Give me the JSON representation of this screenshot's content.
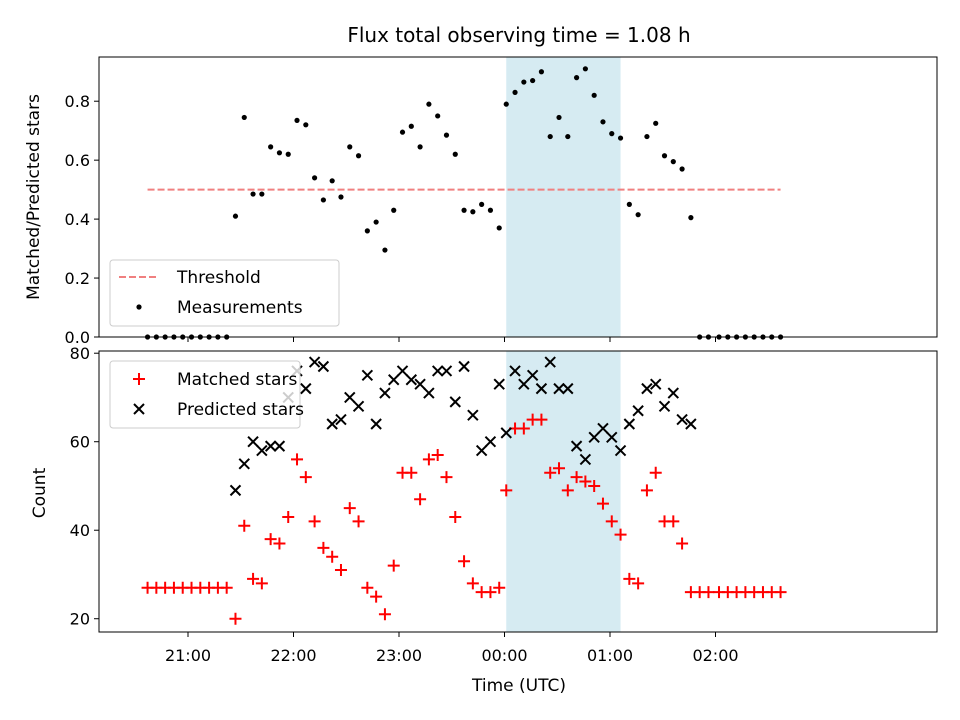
{
  "chart_data": [
    {
      "type": "scatter",
      "title": "Flux total observing time = 1.08 h",
      "xlabel": "",
      "ylabel": "Matched/Predicted stars",
      "ylim": [
        0,
        0.95
      ],
      "yticks": [
        "0.0",
        "0.2",
        "0.4",
        "0.6",
        "0.8"
      ],
      "threshold": {
        "name": "Threshold",
        "value": 0.5,
        "x_start": "20:37",
        "x_end": "02:37",
        "color": "#f08080"
      },
      "highlight": {
        "start": "00:01",
        "end": "01:06",
        "color": "#add8e6"
      },
      "legend": {
        "position": "lower-left"
      },
      "series": [
        {
          "name": "Measurements",
          "color": "#000000",
          "x": [
            "20:37",
            "20:42",
            "20:47",
            "20:52",
            "20:57",
            "21:02",
            "21:07",
            "21:12",
            "21:17",
            "21:22",
            "21:27",
            "21:32",
            "21:37",
            "21:42",
            "21:47",
            "21:52",
            "21:57",
            "22:02",
            "22:07",
            "22:12",
            "22:17",
            "22:22",
            "22:27",
            "22:32",
            "22:37",
            "22:42",
            "22:47",
            "22:52",
            "22:57",
            "23:02",
            "23:07",
            "23:12",
            "23:17",
            "23:22",
            "23:27",
            "23:32",
            "23:37",
            "23:42",
            "23:47",
            "23:52",
            "23:57",
            "00:01",
            "00:06",
            "00:11",
            "00:16",
            "00:21",
            "00:26",
            "00:31",
            "00:36",
            "00:41",
            "00:46",
            "00:51",
            "00:56",
            "01:01",
            "01:06",
            "01:11",
            "01:16",
            "01:21",
            "01:26",
            "01:31",
            "01:36",
            "01:41",
            "01:46",
            "01:51",
            "01:56",
            "02:02",
            "02:07",
            "02:12",
            "02:17",
            "02:22",
            "02:27",
            "02:32",
            "02:37"
          ],
          "y": [
            0,
            0,
            0,
            0,
            0,
            0,
            0,
            0,
            0,
            0,
            0.41,
            0.745,
            0.485,
            0.485,
            0.645,
            0.625,
            0.62,
            0.735,
            0.72,
            0.54,
            0.465,
            0.53,
            0.475,
            0.645,
            0.615,
            0.36,
            0.39,
            0.295,
            0.43,
            0.695,
            0.715,
            0.645,
            0.79,
            0.75,
            0.685,
            0.62,
            0.43,
            0.425,
            0.45,
            0.43,
            0.37,
            0.79,
            0.83,
            0.865,
            0.87,
            0.9,
            0.68,
            0.745,
            0.68,
            0.88,
            0.91,
            0.82,
            0.73,
            0.69,
            0.675,
            0.45,
            0.415,
            0.68,
            0.725,
            0.615,
            0.595,
            0.57,
            0.405,
            0,
            0,
            0,
            0,
            0,
            0,
            0,
            0,
            0,
            0
          ]
        }
      ]
    },
    {
      "type": "scatter",
      "title": "",
      "xlabel": "Time (UTC)",
      "ylabel": "Count",
      "ylim": [
        17,
        80.5
      ],
      "yticks": [
        "20",
        "40",
        "60",
        "80"
      ],
      "xticks": [
        "21:00",
        "22:00",
        "23:00",
        "00:00",
        "01:00",
        "02:00"
      ],
      "highlight": {
        "start": "00:01",
        "end": "01:06",
        "color": "#add8e6"
      },
      "legend": {
        "position": "upper-left"
      },
      "series": [
        {
          "name": "Matched stars",
          "marker": "+",
          "color": "#ff0000",
          "x": [
            "20:37",
            "20:42",
            "20:47",
            "20:52",
            "20:57",
            "21:02",
            "21:07",
            "21:12",
            "21:17",
            "21:22",
            "21:27",
            "21:32",
            "21:37",
            "21:42",
            "21:47",
            "21:52",
            "21:57",
            "22:02",
            "22:07",
            "22:12",
            "22:17",
            "22:22",
            "22:27",
            "22:32",
            "22:37",
            "22:42",
            "22:47",
            "22:52",
            "22:57",
            "23:02",
            "23:07",
            "23:12",
            "23:17",
            "23:22",
            "23:27",
            "23:32",
            "23:37",
            "23:42",
            "23:47",
            "23:52",
            "23:57",
            "00:01",
            "00:06",
            "00:11",
            "00:16",
            "00:21",
            "00:26",
            "00:31",
            "00:36",
            "00:41",
            "00:46",
            "00:51",
            "00:56",
            "01:01",
            "01:06",
            "01:11",
            "01:16",
            "01:21",
            "01:26",
            "01:31",
            "01:36",
            "01:41",
            "01:46",
            "01:51",
            "01:56",
            "02:02",
            "02:07",
            "02:12",
            "02:17",
            "02:22",
            "02:27",
            "02:32",
            "02:37"
          ],
          "y": [
            27,
            27,
            27,
            27,
            27,
            27,
            27,
            27,
            27,
            27,
            20,
            41,
            29,
            28,
            38,
            37,
            43,
            56,
            52,
            42,
            36,
            34,
            31,
            45,
            42,
            27,
            25,
            21,
            32,
            53,
            53,
            47,
            56,
            57,
            52,
            43,
            33,
            28,
            26,
            26,
            27,
            49,
            63,
            63,
            65,
            65,
            53,
            54,
            49,
            52,
            51,
            50,
            46,
            42,
            39,
            29,
            28,
            49,
            53,
            42,
            42,
            37,
            26,
            26,
            26,
            26,
            26,
            26,
            26,
            26,
            26,
            26,
            26
          ]
        },
        {
          "name": "Predicted stars",
          "marker": "x",
          "color": "#000000",
          "x": [
            "21:27",
            "21:32",
            "21:37",
            "21:42",
            "21:47",
            "21:52",
            "21:57",
            "22:02",
            "22:07",
            "22:12",
            "22:17",
            "22:22",
            "22:27",
            "22:32",
            "22:37",
            "22:42",
            "22:47",
            "22:52",
            "22:57",
            "23:02",
            "23:07",
            "23:12",
            "23:17",
            "23:22",
            "23:27",
            "23:32",
            "23:37",
            "23:42",
            "23:47",
            "23:52",
            "23:57",
            "00:01",
            "00:06",
            "00:11",
            "00:16",
            "00:21",
            "00:26",
            "00:31",
            "00:36",
            "00:41",
            "00:46",
            "00:51",
            "00:56",
            "01:01",
            "01:06",
            "01:11",
            "01:16",
            "01:21",
            "01:26",
            "01:31",
            "01:36",
            "01:41",
            "01:46"
          ],
          "y": [
            49,
            55,
            60,
            58,
            59,
            59,
            70,
            76,
            72,
            78,
            77,
            64,
            65,
            70,
            68,
            75,
            64,
            71,
            74,
            76,
            74,
            73,
            71,
            76,
            76,
            69,
            77,
            66,
            58,
            60,
            73,
            62,
            76,
            73,
            75,
            72,
            78,
            72,
            72,
            59,
            56,
            61,
            63,
            61,
            58,
            64,
            67,
            72,
            73,
            68,
            71,
            65,
            64
          ]
        }
      ]
    }
  ]
}
